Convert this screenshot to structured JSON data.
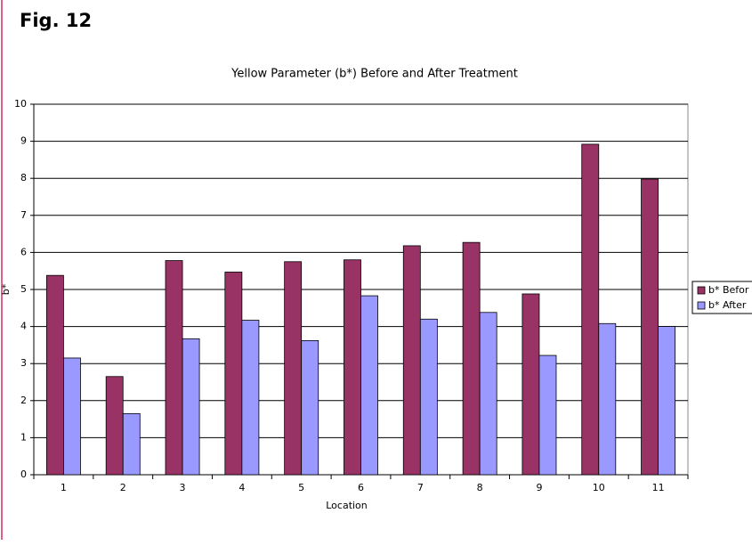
{
  "figure_label": "Fig. 12",
  "chart_data": {
    "type": "bar",
    "title": "Yellow Parameter (b*) Before and After Treatment",
    "x_label": "Location",
    "y_label": "b*",
    "categories": [
      "1",
      "2",
      "3",
      "4",
      "5",
      "6",
      "7",
      "8",
      "9",
      "10",
      "11"
    ],
    "series": [
      {
        "name": "b* Befor",
        "color": "#993366",
        "values": [
          5.38,
          2.65,
          5.78,
          5.47,
          5.75,
          5.8,
          6.18,
          6.27,
          4.88,
          8.92,
          7.98
        ]
      },
      {
        "name": "b* After",
        "color": "#9999ff",
        "values": [
          3.15,
          1.65,
          3.67,
          4.17,
          3.62,
          4.83,
          4.2,
          4.38,
          3.22,
          4.08,
          4.0
        ]
      }
    ],
    "ylim": [
      0,
      10
    ],
    "yticks": [
      0,
      1,
      2,
      3,
      4,
      5,
      6,
      7,
      8,
      9,
      10
    ],
    "grid": true,
    "legend": "right"
  }
}
